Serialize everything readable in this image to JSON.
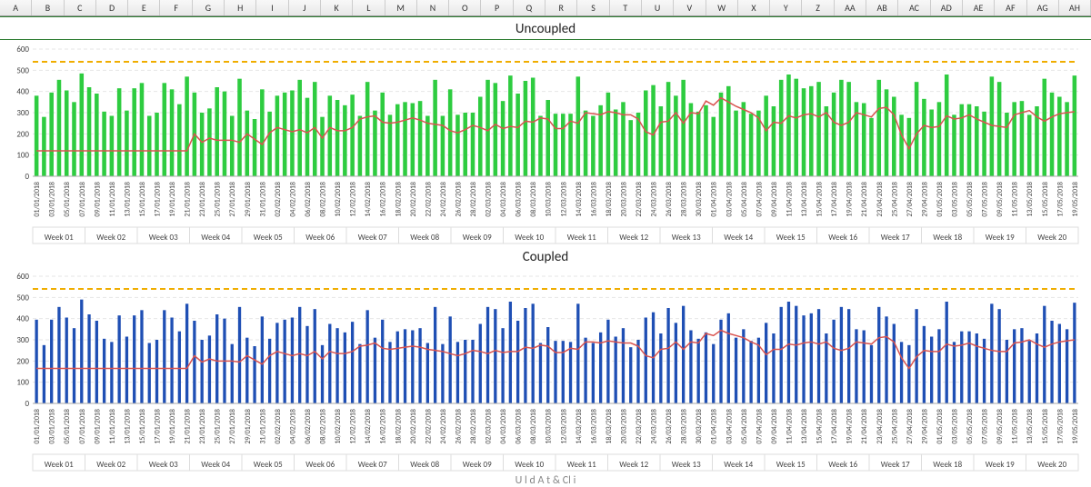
{
  "column_headers": [
    "A",
    "B",
    "C",
    "D",
    "E",
    "F",
    "G",
    "H",
    "I",
    "J",
    "K",
    "L",
    "M",
    "N",
    "O",
    "P",
    "Q",
    "R",
    "S",
    "T",
    "U",
    "V",
    "W",
    "X",
    "Y",
    "Z",
    "AA",
    "AB",
    "AC",
    "AD",
    "AE",
    "AF",
    "AG",
    "AH"
  ],
  "charts": [
    {
      "title": "Uncoupled",
      "type": "bar+line",
      "bar_color": "#2ecc40",
      "trend_color": "#d9534f",
      "ref_color": "#f0ad00",
      "background_color": "#ffffff",
      "grid_color": "#e6e6e6",
      "ylim": [
        0,
        600
      ],
      "ytick_step": 100,
      "ref_value": 540,
      "bar_width": 0.55,
      "trend_start_index": 21,
      "dates": [
        "01/01/2018",
        "03/01/2018",
        "05/01/2018",
        "07/01/2018",
        "09/01/2018",
        "11/01/2018",
        "13/01/2018",
        "15/01/2018",
        "17/01/2018",
        "19/01/2018",
        "21/01/2018",
        "23/01/2018",
        "25/01/2018",
        "27/01/2018",
        "29/01/2018",
        "31/01/2018",
        "02/02/2018",
        "04/02/2018",
        "06/02/2018",
        "08/02/2018",
        "10/02/2018",
        "12/02/2018",
        "14/02/2018",
        "16/02/2018",
        "18/02/2018",
        "20/02/2018",
        "22/02/2018",
        "24/02/2018",
        "26/02/2018",
        "28/02/2018",
        "02/03/2018",
        "04/03/2018",
        "06/03/2018",
        "08/03/2018",
        "10/03/2018",
        "12/03/2018",
        "14/03/2018",
        "16/03/2018",
        "18/03/2018",
        "20/03/2018",
        "22/03/2018",
        "24/03/2018",
        "26/03/2018",
        "28/03/2018",
        "30/03/2018",
        "01/04/2018",
        "03/04/2018",
        "05/04/2018",
        "07/04/2018",
        "09/04/2018",
        "11/04/2018",
        "13/04/2018",
        "15/04/2018",
        "17/04/2018",
        "19/04/2018",
        "21/04/2018",
        "23/04/2018",
        "25/04/2018",
        "27/04/2018",
        "29/04/2018",
        "01/05/2018",
        "03/05/2018",
        "05/05/2018",
        "07/05/2018",
        "09/05/2018",
        "11/05/2018",
        "13/05/2018",
        "15/05/2018",
        "17/05/2018",
        "19/05/2018"
      ],
      "weeks": [
        "Week 01",
        "Week 02",
        "Week 03",
        "Week 04",
        "Week 05",
        "Week 06",
        "Week 07",
        "Week 08",
        "Week 09",
        "Week 10",
        "Week 11",
        "Week 12",
        "Week 13",
        "Week 14",
        "Week 15",
        "Week 16",
        "Week 17",
        "Week 18",
        "Week 19",
        "Week 20"
      ],
      "days_per_week": 7,
      "values": [
        380,
        280,
        395,
        455,
        405,
        350,
        485,
        420,
        390,
        305,
        285,
        415,
        310,
        415,
        440,
        285,
        300,
        440,
        410,
        340,
        470,
        395,
        300,
        320,
        420,
        400,
        285,
        460,
        310,
        270,
        410,
        305,
        380,
        395,
        405,
        455,
        370,
        445,
        280,
        380,
        360,
        335,
        385,
        285,
        445,
        310,
        395,
        290,
        340,
        350,
        345,
        355,
        285,
        455,
        285,
        410,
        290,
        300,
        300,
        375,
        455,
        440,
        355,
        475,
        390,
        450,
        465,
        285,
        360,
        295,
        295,
        295,
        470,
        310,
        285,
        335,
        395,
        315,
        350,
        265,
        300,
        405,
        430,
        330,
        445,
        380,
        455,
        345,
        305,
        335,
        280,
        395,
        425,
        310,
        350,
        295,
        310,
        380,
        330,
        455,
        480,
        460,
        415,
        425,
        445,
        330,
        395,
        455,
        445,
        350,
        345,
        275,
        455,
        410,
        375,
        290,
        275,
        445,
        365,
        315,
        350,
        480,
        290,
        340,
        340,
        330,
        305,
        470,
        445,
        300,
        350,
        355,
        290,
        330,
        460,
        395,
        375,
        350,
        475
      ],
      "trend": [
        120,
        120,
        120,
        120,
        120,
        120,
        120,
        120,
        120,
        120,
        120,
        120,
        120,
        120,
        120,
        120,
        120,
        120,
        120,
        120,
        120,
        200,
        160,
        180,
        170,
        170,
        170,
        160,
        200,
        175,
        150,
        205,
        230,
        220,
        210,
        220,
        205,
        230,
        180,
        230,
        215,
        215,
        230,
        270,
        280,
        285,
        255,
        250,
        255,
        265,
        275,
        265,
        250,
        245,
        240,
        215,
        205,
        220,
        240,
        230,
        215,
        245,
        225,
        235,
        230,
        260,
        255,
        275,
        270,
        225,
        225,
        260,
        250,
        300,
        295,
        290,
        305,
        300,
        290,
        290,
        270,
        210,
        195,
        255,
        260,
        300,
        250,
        300,
        295,
        355,
        335,
        370,
        350,
        330,
        315,
        300,
        275,
        215,
        255,
        250,
        285,
        275,
        290,
        295,
        280,
        300,
        255,
        240,
        255,
        300,
        290,
        280,
        320,
        325,
        290,
        195,
        130,
        200,
        240,
        230,
        235,
        285,
        270,
        275,
        290,
        270,
        255,
        240,
        235,
        230,
        290,
        300,
        310,
        280,
        260,
        280,
        295,
        300,
        305
      ],
      "title_fontsize": 15,
      "label_fontsize": 9
    },
    {
      "title": "Coupled",
      "type": "bar+line",
      "bar_color": "#1f4fb4",
      "trend_color": "#d9534f",
      "ref_color": "#f0ad00",
      "background_color": "#ffffff",
      "grid_color": "#e6e6e6",
      "ylim": [
        0,
        600
      ],
      "ytick_step": 100,
      "ref_value": 540,
      "bar_width": 0.4,
      "trend_start_index": 21,
      "dates": [
        "01/01/2018",
        "03/01/2018",
        "05/01/2018",
        "07/01/2018",
        "09/01/2018",
        "11/01/2018",
        "13/01/2018",
        "15/01/2018",
        "17/01/2018",
        "19/01/2018",
        "21/01/2018",
        "23/01/2018",
        "25/01/2018",
        "27/01/2018",
        "29/01/2018",
        "31/01/2018",
        "02/02/2018",
        "04/02/2018",
        "06/02/2018",
        "08/02/2018",
        "10/02/2018",
        "12/02/2018",
        "14/02/2018",
        "16/02/2018",
        "18/02/2018",
        "20/02/2018",
        "22/02/2018",
        "24/02/2018",
        "26/02/2018",
        "28/02/2018",
        "02/03/2018",
        "04/03/2018",
        "06/03/2018",
        "08/03/2018",
        "10/03/2018",
        "12/03/2018",
        "14/03/2018",
        "16/03/2018",
        "18/03/2018",
        "20/03/2018",
        "22/03/2018",
        "24/03/2018",
        "26/03/2018",
        "28/03/2018",
        "30/03/2018",
        "01/04/2018",
        "03/04/2018",
        "05/04/2018",
        "07/04/2018",
        "09/04/2018",
        "11/04/2018",
        "13/04/2018",
        "15/04/2018",
        "17/04/2018",
        "19/04/2018",
        "21/04/2018",
        "23/04/2018",
        "25/04/2018",
        "27/04/2018",
        "29/04/2018",
        "01/05/2018",
        "03/05/2018",
        "05/05/2018",
        "07/05/2018",
        "09/05/2018",
        "11/05/2018",
        "13/05/2018",
        "15/05/2018",
        "17/05/2018",
        "19/05/2018"
      ],
      "weeks": [
        "Week 01",
        "Week 02",
        "Week 03",
        "Week 04",
        "Week 05",
        "Week 06",
        "Week 07",
        "Week 08",
        "Week 09",
        "Week 10",
        "Week 11",
        "Week 12",
        "Week 13",
        "Week 14",
        "Week 15",
        "Week 16",
        "Week 17",
        "Week 18",
        "Week 19",
        "Week 20"
      ],
      "days_per_week": 7,
      "values": [
        395,
        275,
        395,
        455,
        405,
        355,
        490,
        420,
        390,
        305,
        290,
        415,
        315,
        415,
        440,
        285,
        300,
        440,
        405,
        340,
        470,
        390,
        300,
        320,
        420,
        400,
        280,
        455,
        310,
        270,
        410,
        305,
        380,
        395,
        405,
        455,
        365,
        445,
        275,
        375,
        355,
        335,
        385,
        280,
        440,
        310,
        395,
        290,
        340,
        350,
        345,
        355,
        285,
        455,
        280,
        410,
        290,
        300,
        300,
        375,
        455,
        445,
        355,
        480,
        390,
        450,
        470,
        285,
        360,
        295,
        295,
        290,
        470,
        310,
        285,
        335,
        395,
        315,
        355,
        265,
        300,
        405,
        430,
        330,
        450,
        380,
        460,
        345,
        305,
        335,
        280,
        395,
        425,
        310,
        350,
        295,
        310,
        380,
        330,
        455,
        480,
        460,
        415,
        425,
        445,
        330,
        395,
        455,
        445,
        350,
        345,
        275,
        455,
        410,
        375,
        290,
        275,
        445,
        365,
        315,
        350,
        480,
        290,
        340,
        340,
        330,
        305,
        470,
        445,
        300,
        350,
        355,
        295,
        330,
        460,
        390,
        375,
        350,
        475
      ],
      "trend": [
        165,
        165,
        165,
        165,
        165,
        165,
        165,
        165,
        165,
        165,
        165,
        165,
        165,
        165,
        165,
        165,
        165,
        165,
        165,
        165,
        165,
        225,
        195,
        210,
        200,
        200,
        200,
        195,
        225,
        205,
        185,
        225,
        245,
        235,
        225,
        235,
        225,
        245,
        210,
        245,
        235,
        235,
        245,
        270,
        275,
        285,
        260,
        255,
        260,
        265,
        270,
        265,
        255,
        250,
        245,
        235,
        225,
        235,
        250,
        245,
        235,
        250,
        240,
        245,
        245,
        265,
        260,
        275,
        270,
        240,
        240,
        260,
        255,
        290,
        290,
        285,
        295,
        290,
        285,
        285,
        270,
        225,
        215,
        255,
        260,
        290,
        255,
        290,
        285,
        330,
        320,
        345,
        330,
        320,
        310,
        290,
        275,
        230,
        255,
        255,
        280,
        275,
        285,
        290,
        280,
        290,
        260,
        250,
        260,
        290,
        285,
        280,
        310,
        315,
        290,
        215,
        165,
        220,
        250,
        245,
        245,
        280,
        270,
        275,
        285,
        270,
        260,
        250,
        245,
        245,
        285,
        290,
        300,
        280,
        265,
        280,
        290,
        295,
        300
      ],
      "title_fontsize": 15,
      "label_fontsize": 9
    }
  ],
  "cutoff_text": "U           l  d   A     t     &    Cl         i"
}
